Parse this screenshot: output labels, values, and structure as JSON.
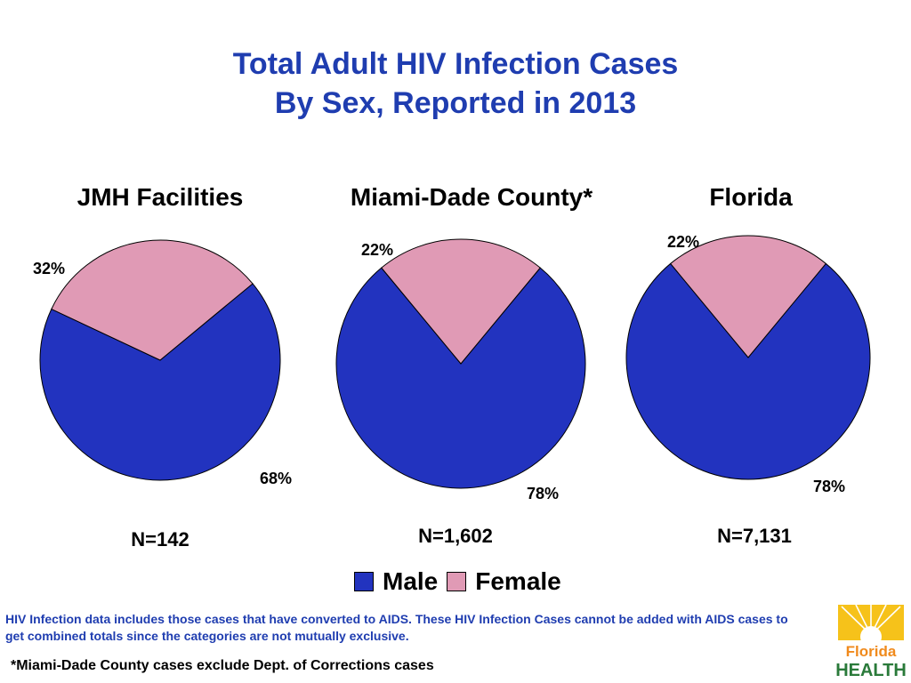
{
  "title_line1": "Total Adult HIV Infection Cases",
  "title_line2": "By Sex, Reported in 2013",
  "colors": {
    "male": "#2233bf",
    "female": "#e09ab5",
    "title": "#1f3db0"
  },
  "chart_data": [
    {
      "type": "pie",
      "title": "JMH Facilities",
      "slices": [
        {
          "label": "Male",
          "value": 68,
          "text": "68%"
        },
        {
          "label": "Female",
          "value": 32,
          "text": "32%"
        }
      ],
      "n_label": "N=142"
    },
    {
      "type": "pie",
      "title": "Miami-Dade County*",
      "slices": [
        {
          "label": "Male",
          "value": 78,
          "text": "78%"
        },
        {
          "label": "Female",
          "value": 22,
          "text": "22%"
        }
      ],
      "n_label": "N=1,602"
    },
    {
      "type": "pie",
      "title": "Florida",
      "slices": [
        {
          "label": "Male",
          "value": 78,
          "text": "78%"
        },
        {
          "label": "Female",
          "value": 22,
          "text": "22%"
        }
      ],
      "n_label": "N=7,131"
    }
  ],
  "legend": {
    "male": "Male",
    "female": "Female"
  },
  "note": "HIV Infection data includes those cases that have converted to AIDS.  These HIV Infection Cases cannot be added with AIDS cases to get combined totals since the categories are not mutually exclusive.",
  "footnote": "*Miami-Dade County cases exclude Dept. of Corrections cases",
  "logo": {
    "line1": "Florida",
    "line2": "HEALTH"
  }
}
